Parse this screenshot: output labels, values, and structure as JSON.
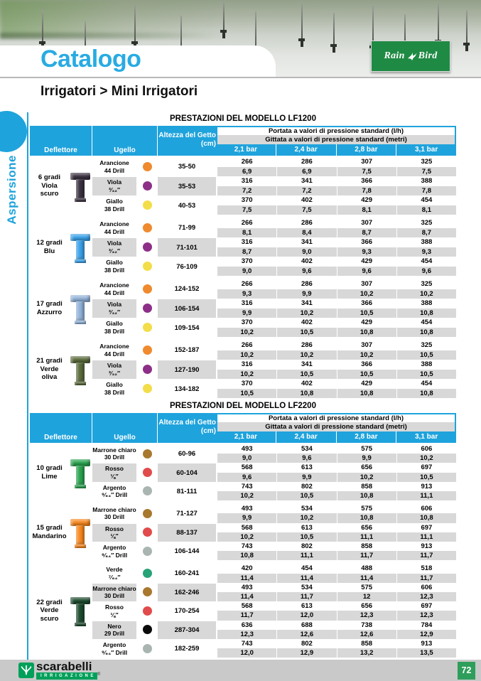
{
  "banner": {
    "logo_rain": "Rain",
    "logo_bird": "Bird"
  },
  "header": {
    "title": "Catalogo",
    "breadcrumb": "Irrigatori > Mini Irrigatori",
    "side_tab": "Aspersione"
  },
  "colors": {
    "accent_blue": "#1fa3dc",
    "row_gray": "#d8d8d8",
    "brand_green": "#1f8a44",
    "page_green": "#2e9e5b"
  },
  "tables": [
    {
      "title": "PRESTAZIONI DEL MODELLO LF1200",
      "headers": {
        "deflettore": "Deflettore",
        "ugello": "Ugello",
        "altezza_line1": "Altezza del Getto",
        "altezza_line2": "(cm)",
        "portata": "Portata a valori di pressione standard (l/h)",
        "gittata": "Gittata a valori di pressione standard (metri)",
        "bars": [
          "2,1 bar",
          "2,4 bar",
          "2,8 bar",
          "3,1 bar"
        ]
      },
      "groups": [
        {
          "d1": "6 gradi",
          "d2": "Viola scuro",
          "color": "#3a3140",
          "rows": [
            {
              "u1": "Arancione",
              "u2": "44 Drill",
              "dot": "#ef8a2e",
              "alt": "35-50",
              "p": [
                "266",
                "286",
                "307",
                "325"
              ],
              "g": [
                "6,9",
                "6,9",
                "7,5",
                "7,5"
              ]
            },
            {
              "u1": "Viola",
              "u2": "³⁄₃₂″",
              "dot": "#8d2f88",
              "alt": "35-53",
              "p": [
                "316",
                "341",
                "366",
                "388"
              ],
              "g": [
                "7,2",
                "7,2",
                "7,8",
                "7,8"
              ]
            },
            {
              "u1": "Giallo",
              "u2": "38 Drill",
              "dot": "#f3dd49",
              "alt": "40-53",
              "p": [
                "370",
                "402",
                "429",
                "454"
              ],
              "g": [
                "7,5",
                "7,5",
                "8,1",
                "8,1"
              ]
            }
          ]
        },
        {
          "d1": "12 gradi",
          "d2": "Blu",
          "color": "#3aa0e8",
          "rows": [
            {
              "u1": "Arancione",
              "u2": "44 Drill",
              "dot": "#ef8a2e",
              "alt": "71-99",
              "p": [
                "266",
                "286",
                "307",
                "325"
              ],
              "g": [
                "8,1",
                "8,4",
                "8,7",
                "8,7"
              ]
            },
            {
              "u1": "Viola",
              "u2": "³⁄₃₂″",
              "dot": "#8d2f88",
              "alt": "71-101",
              "p": [
                "316",
                "341",
                "366",
                "388"
              ],
              "g": [
                "8,7",
                "9,0",
                "9,3",
                "9,3"
              ]
            },
            {
              "u1": "Giallo",
              "u2": "38 Drill",
              "dot": "#f3dd49",
              "alt": "76-109",
              "p": [
                "370",
                "402",
                "429",
                "454"
              ],
              "g": [
                "9,0",
                "9,6",
                "9,6",
                "9,6"
              ]
            }
          ]
        },
        {
          "d1": "17 gradi",
          "d2": "Azzurro",
          "color": "#92b2d8",
          "rows": [
            {
              "u1": "Arancione",
              "u2": "44 Drill",
              "dot": "#ef8a2e",
              "alt": "124-152",
              "p": [
                "266",
                "286",
                "307",
                "325"
              ],
              "g": [
                "9,3",
                "9,9",
                "10,2",
                "10,2"
              ]
            },
            {
              "u1": "Viola",
              "u2": "³⁄₃₂″",
              "dot": "#8d2f88",
              "alt": "106-154",
              "p": [
                "316",
                "341",
                "366",
                "388"
              ],
              "g": [
                "9,9",
                "10,2",
                "10,5",
                "10,8"
              ]
            },
            {
              "u1": "Giallo",
              "u2": "38 Drill",
              "dot": "#f3dd49",
              "alt": "109-154",
              "p": [
                "370",
                "402",
                "429",
                "454"
              ],
              "g": [
                "10,2",
                "10,5",
                "10,8",
                "10,8"
              ]
            }
          ]
        },
        {
          "d1": "21 gradi",
          "d2": "Verde oliva",
          "color": "#5a6a3b",
          "rows": [
            {
              "u1": "Arancione",
              "u2": "44 Drill",
              "dot": "#ef8a2e",
              "alt": "152-187",
              "p": [
                "266",
                "286",
                "307",
                "325"
              ],
              "g": [
                "10,2",
                "10,2",
                "10,2",
                "10,5"
              ]
            },
            {
              "u1": "Viola",
              "u2": "³⁄₃₂″",
              "dot": "#8d2f88",
              "alt": "127-190",
              "p": [
                "316",
                "341",
                "366",
                "388"
              ],
              "g": [
                "10,2",
                "10,5",
                "10,5",
                "10,5"
              ]
            },
            {
              "u1": "Giallo",
              "u2": "38 Drill",
              "dot": "#f3dd49",
              "alt": "134-182",
              "p": [
                "370",
                "402",
                "429",
                "454"
              ],
              "g": [
                "10,5",
                "10,8",
                "10,8",
                "10,8"
              ]
            }
          ]
        }
      ]
    },
    {
      "title": "PRESTAZIONI DEL MODELLO LF2200",
      "headers": {
        "deflettore": "Deflettore",
        "ugello": "Ugello",
        "altezza_line1": "Altezza del Getto",
        "altezza_line2": "(cm)",
        "portata": "Portata a valori di pressione standard (l/h)",
        "gittata": "Gittata a valori di pressione standard (metri)",
        "bars": [
          "2,1 bar",
          "2,4 bar",
          "2,8 bar",
          "3,1 bar"
        ]
      },
      "groups": [
        {
          "d1": "10 gradi",
          "d2": "Lime",
          "color": "#2aa24f",
          "rows": [
            {
              "u1": "Marrone chiaro",
              "u2": "30 Drill",
              "dot": "#a8782e",
              "alt": "60-96",
              "p": [
                "493",
                "534",
                "575",
                "606"
              ],
              "g": [
                "9,0",
                "9,6",
                "9,9",
                "10,2"
              ]
            },
            {
              "u1": "Rosso",
              "u2": "⅛″",
              "dot": "#e14b4b",
              "alt": "60-104",
              "p": [
                "568",
                "613",
                "656",
                "697"
              ],
              "g": [
                "9,6",
                "9,9",
                "10,2",
                "10,5"
              ]
            },
            {
              "u1": "Argento",
              "u2": "⁹⁄₆₄″ Drill",
              "dot": "#a9b5b0",
              "alt": "81-111",
              "p": [
                "743",
                "802",
                "858",
                "913"
              ],
              "g": [
                "10,2",
                "10,5",
                "10,8",
                "11,1"
              ]
            }
          ]
        },
        {
          "d1": "15 gradi",
          "d2": "Mandarino",
          "color": "#f6871f",
          "rows": [
            {
              "u1": "Marrone chiaro",
              "u2": "30 Drill",
              "dot": "#a8782e",
              "alt": "71-127",
              "p": [
                "493",
                "534",
                "575",
                "606"
              ],
              "g": [
                "9,9",
                "10,2",
                "10,8",
                "10,8"
              ]
            },
            {
              "u1": "Rosso",
              "u2": "⅛″",
              "dot": "#e14b4b",
              "alt": "88-137",
              "p": [
                "568",
                "613",
                "656",
                "697"
              ],
              "g": [
                "10,2",
                "10,5",
                "11,1",
                "11,1"
              ]
            },
            {
              "u1": "Argento",
              "u2": "⁹⁄₆₄″ Drill",
              "dot": "#a9b5b0",
              "alt": "106-144",
              "p": [
                "743",
                "802",
                "858",
                "913"
              ],
              "g": [
                "10,8",
                "11,1",
                "11,7",
                "11,7"
              ]
            }
          ]
        },
        {
          "d1": "22 gradi",
          "d2": "Verde scuro",
          "color": "#1d4a2e",
          "rows": [
            {
              "u1": "Verde",
              "u2": "⁷⁄₆₄″",
              "dot": "#27a377",
              "alt": "160-241",
              "p": [
                "420",
                "454",
                "488",
                "518"
              ],
              "g": [
                "11,4",
                "11,4",
                "11,4",
                "11,7"
              ]
            },
            {
              "u1": "Marrone chiaro",
              "u2": "30 Drill",
              "dot": "#a8782e",
              "alt": "162-246",
              "p": [
                "493",
                "534",
                "575",
                "606"
              ],
              "g": [
                "11,4",
                "11,7",
                "12",
                "12,3"
              ]
            },
            {
              "u1": "Rosso",
              "u2": "⅛″",
              "dot": "#e14b4b",
              "alt": "170-254",
              "p": [
                "568",
                "613",
                "656",
                "697"
              ],
              "g": [
                "11,7",
                "12,0",
                "12,3",
                "12,3"
              ]
            },
            {
              "u1": "Nero",
              "u2": "29 Drill",
              "dot": "#0a0a0a",
              "alt": "287-304",
              "p": [
                "636",
                "688",
                "738",
                "784"
              ],
              "g": [
                "12,3",
                "12,6",
                "12,6",
                "12,9"
              ]
            },
            {
              "u1": "Argento",
              "u2": "⁹⁄₆₄″ Drill",
              "dot": "#a9b5b0",
              "alt": "182-259",
              "p": [
                "743",
                "802",
                "858",
                "913"
              ],
              "g": [
                "12,0",
                "12,9",
                "13,2",
                "13,5"
              ]
            }
          ]
        }
      ]
    }
  ],
  "footer": {
    "brand": "scarabelli",
    "brand_sub": "IRRIGAZIONE",
    "reg": "®",
    "page_number": "72"
  }
}
